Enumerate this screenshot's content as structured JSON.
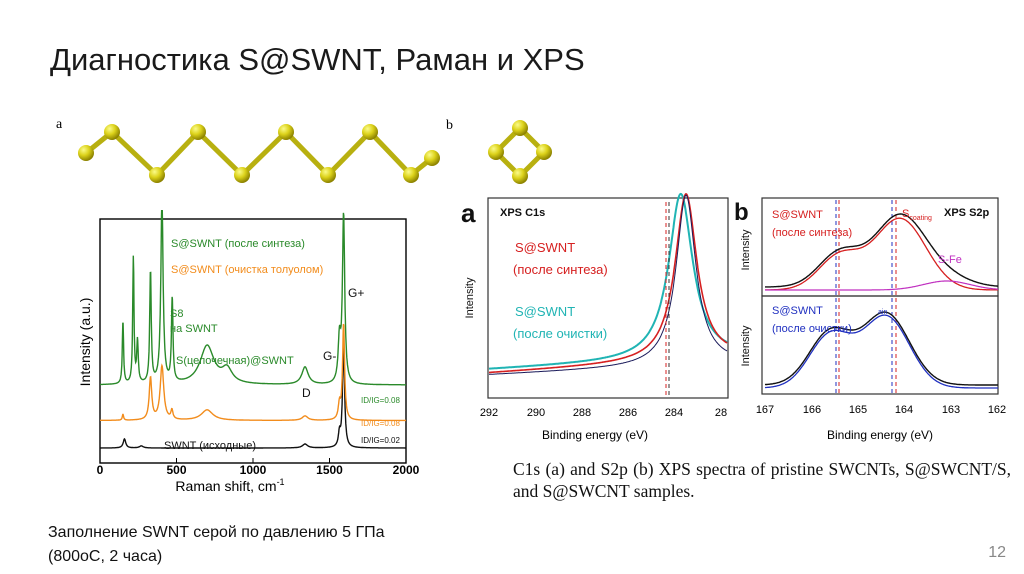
{
  "title": "Диагностика S@SWNT, Раман и XPS",
  "panel_a_label": "a",
  "panel_b_label": "b",
  "raman_chart": {
    "type": "line",
    "xlabel": "Raman shift, cm",
    "xlabel_sup": "-1",
    "ylabel": "Intensity (a.u.)",
    "xlim": [
      0,
      2000
    ],
    "xticks": [
      "0",
      "500",
      "1000",
      "1500",
      "2000"
    ],
    "series": [
      {
        "name": "S@SWNT (после синтеза)",
        "color": "#2a8a2a"
      },
      {
        "name": "S@SWNT (очистка толуолом)",
        "color": "#f28c1c"
      },
      {
        "name": "SWNT (исходные)",
        "color": "#111111"
      }
    ],
    "annotations": [
      "S8",
      "на SWNT",
      "S(цепочечная)@SWNT",
      "D",
      "G-",
      "G+"
    ],
    "ratios": [
      "ID/IG=0.08",
      "ID/IG=0.08",
      "ID/IG=0.02"
    ]
  },
  "xps_c1s_chart": {
    "type": "line",
    "panel": "a",
    "title": "XPS C1s",
    "xlabel": "Binding energy (eV)",
    "ylabel": "Intensity",
    "xticks": [
      "292",
      "290",
      "288",
      "286",
      "284",
      "28"
    ],
    "series": [
      {
        "name": "S@SWNT (после синтеза)",
        "color": "#d62020"
      },
      {
        "name": "S@SWNT (после очистки)",
        "color": "#20b4b4"
      }
    ],
    "legend_1": [
      "S@SWNT",
      "(после синтеза)"
    ],
    "legend_2": [
      "S@SWNT",
      "(после очистки)"
    ]
  },
  "xps_s2p_chart": {
    "type": "line",
    "panel": "b",
    "title": "XPS S2p",
    "xlabel": "Binding energy (eV)",
    "ylabel": "Intensity",
    "xticks": [
      "167",
      "166",
      "165",
      "164",
      "163",
      "162"
    ],
    "top_legend": [
      "S@SWNT",
      "(после синтеза)"
    ],
    "bottom_legend": [
      "S@SWNT",
      "(после очистки)"
    ],
    "peak_labels": [
      "S",
      "coating",
      "S-Fe",
      "ain"
    ]
  },
  "caption_figure": "C1s (a) and S2p (b) XPS spectra of pristine SWCNTs, S@SWCNT/S, and S@SWCNT samples.",
  "caption_note_line1": "Заполнение SWNT серой по давлению 5 ГПа",
  "caption_note_line2": "(800оС, 2 часа)",
  "page_number": "12"
}
